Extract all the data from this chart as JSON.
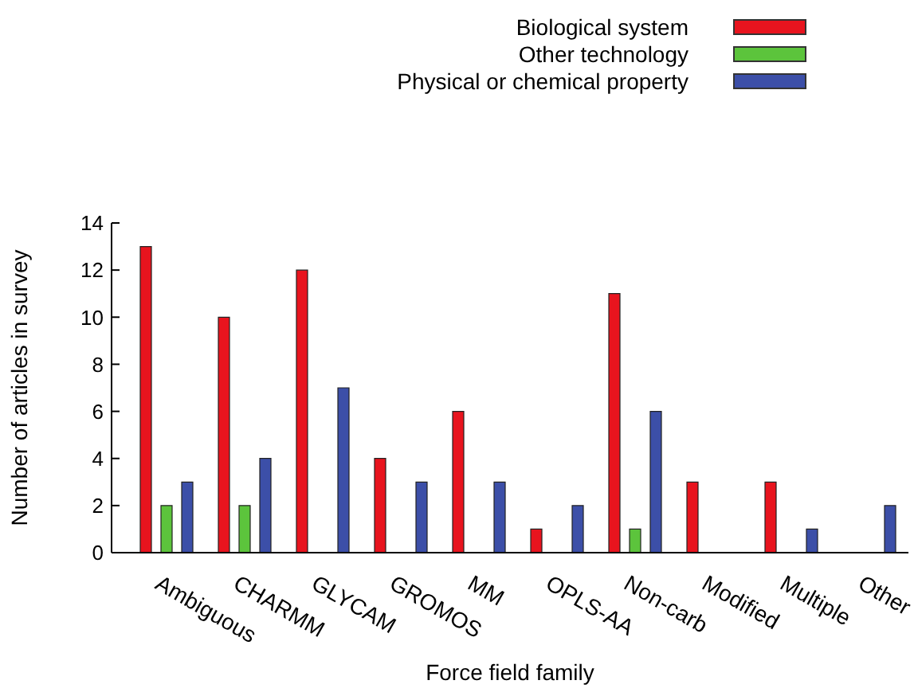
{
  "chart_data": {
    "type": "bar",
    "xlabel": "Force field family",
    "ylabel": "Number of articles in survey",
    "categories": [
      "Ambiguous",
      "CHARMM",
      "GLYCAM",
      "GROMOS",
      "MM",
      "OPLS-AA",
      "Non-carb",
      "Modified",
      "Multiple",
      "Other"
    ],
    "series": [
      {
        "name": "Biological system",
        "color": "#e8141e",
        "values": [
          13,
          10,
          12,
          4,
          6,
          1,
          11,
          3,
          3,
          0
        ]
      },
      {
        "name": "Other technology",
        "color": "#5cc43c",
        "values": [
          2,
          2,
          0,
          0,
          0,
          0,
          1,
          0,
          0,
          0
        ]
      },
      {
        "name": "Physical or chemical property",
        "color": "#3c4fa8",
        "values": [
          3,
          4,
          7,
          3,
          3,
          2,
          6,
          0,
          1,
          2
        ]
      }
    ],
    "ylim": [
      0,
      14
    ],
    "yticks": [
      0,
      2,
      4,
      6,
      8,
      10,
      12,
      14
    ],
    "legend": "top right"
  }
}
